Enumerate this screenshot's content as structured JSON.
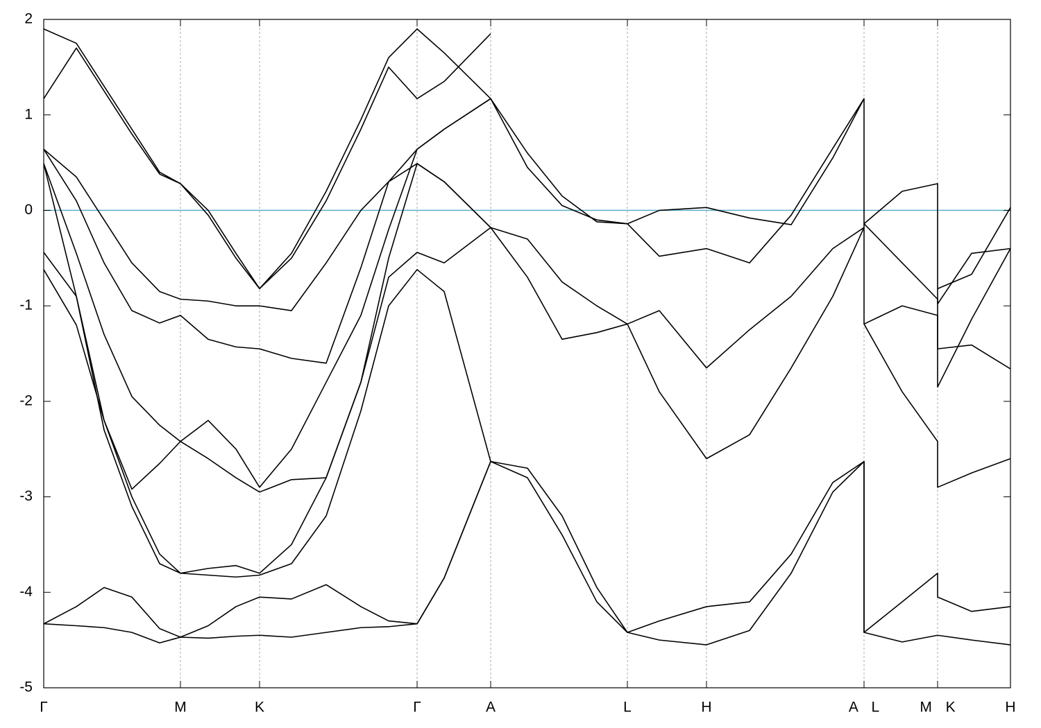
{
  "chart_data": {
    "type": "line",
    "x": [
      0,
      0.47,
      0.87,
      1.27,
      1.67,
      1.97,
      2.37,
      2.77,
      3.11,
      3.57,
      4.07,
      4.57,
      4.97,
      5.38,
      5.77,
      6.44,
      6.97,
      7.47,
      7.97,
      8.41,
      8.87,
      9.55,
      10.17,
      10.77,
      11.37,
      11.82,
      11.82,
      12.37,
      12.88,
      12.88,
      13.37,
      13.93
    ],
    "series": [
      {
        "color": "#000000",
        "values": [
          -4.33,
          -4.35,
          -4.37,
          -4.42,
          -4.53,
          -4.47,
          -4.48,
          -4.46,
          -4.45,
          -4.47,
          -4.42,
          -4.37,
          -4.36,
          -4.33,
          -3.85,
          -2.63,
          -2.8,
          -3.4,
          -4.1,
          -4.42,
          -4.5,
          -4.55,
          -4.4,
          -3.8,
          -2.95,
          -2.63,
          -4.42,
          -4.52,
          -4.45,
          -4.45,
          -4.5,
          -4.55
        ]
      },
      {
        "color": "#000000",
        "values": [
          -4.33,
          -4.15,
          -3.95,
          -4.05,
          -4.38,
          -4.47,
          -4.35,
          -4.15,
          -4.05,
          -4.07,
          -3.92,
          -4.15,
          -4.3,
          -4.33,
          -3.85,
          -2.63,
          -2.7,
          -3.2,
          -3.95,
          -4.42,
          -4.3,
          -4.15,
          -4.1,
          -3.6,
          -2.85,
          -2.63,
          -4.42,
          -4.1,
          -3.8,
          -4.05,
          -4.2,
          -4.15
        ]
      },
      {
        "color": "#000000",
        "values": [
          -0.62,
          -1.2,
          -2.2,
          -3.0,
          -3.6,
          -3.8,
          -3.82,
          -3.84,
          -3.82,
          -3.7,
          -3.2,
          -2.1,
          -1.0,
          -0.62,
          -0.85,
          -2.63,
          null,
          null,
          null,
          null,
          null,
          null,
          null,
          null,
          null,
          null,
          -1.19,
          -1.9,
          -2.42,
          -2.9,
          -2.75,
          -2.6
        ]
      },
      {
        "color": "#000000",
        "values": [
          -0.44,
          -0.9,
          -2.3,
          -3.1,
          -3.7,
          -3.8,
          -3.75,
          -3.72,
          -3.8,
          -3.5,
          -2.8,
          -1.8,
          -0.7,
          -0.44,
          -0.55,
          -0.18,
          -0.3,
          -0.75,
          -1.0,
          -1.19,
          -1.05,
          -1.65,
          -1.25,
          -0.9,
          -0.4,
          -0.18,
          -1.19,
          -1.0,
          -1.1,
          -1.85,
          -1.14,
          -0.4
        ]
      },
      {
        "color": "#000000",
        "values": [
          0.49,
          -0.45,
          -1.3,
          -1.95,
          -2.25,
          -2.42,
          -2.6,
          -2.8,
          -2.95,
          -2.82,
          -2.8,
          -1.8,
          -0.5,
          0.49,
          0.3,
          -0.18,
          -0.7,
          -1.35,
          -1.28,
          -1.19,
          -1.9,
          -2.6,
          -2.35,
          -1.65,
          -0.9,
          -0.18,
          -0.14,
          -0.55,
          -0.93,
          -1.45,
          -1.41,
          -1.66
        ]
      },
      {
        "color": "#000000",
        "values": [
          0.49,
          -0.9,
          -2.2,
          -2.92,
          -2.65,
          -2.42,
          -2.2,
          -2.5,
          -2.9,
          -2.5,
          -1.8,
          -1.1,
          -0.2,
          0.64,
          0.85,
          1.17,
          0.45,
          0.05,
          -0.1,
          -0.14,
          -0.48,
          -0.4,
          -0.55,
          -0.05,
          0.65,
          1.17,
          -0.14,
          0.2,
          0.28,
          -0.98,
          -0.45,
          -0.4
        ]
      },
      {
        "color": "#000000",
        "values": [
          0.64,
          0.1,
          -0.55,
          -1.05,
          -1.18,
          -1.1,
          -1.35,
          -1.43,
          -1.45,
          -1.55,
          -1.6,
          -0.6,
          0.3,
          0.64,
          0.85,
          1.17,
          0.6,
          0.15,
          -0.12,
          -0.14,
          0.0,
          0.03,
          -0.08,
          -0.15,
          0.55,
          1.17,
          null,
          null,
          null,
          -0.82,
          -0.67,
          0.03
        ]
      },
      {
        "color": "#000000",
        "values": [
          0.64,
          0.35,
          -0.1,
          -0.55,
          -0.85,
          -0.93,
          -0.95,
          -1.0,
          -1.0,
          -1.05,
          -0.55,
          0.0,
          0.3,
          0.49,
          0.3,
          -0.18,
          null,
          null,
          null,
          null,
          null,
          null,
          null,
          null,
          null,
          null,
          null,
          null,
          null,
          null,
          null,
          null
        ]
      },
      {
        "color": "#000000",
        "values": [
          1.17,
          1.7,
          1.25,
          0.8,
          0.38,
          0.28,
          0.0,
          -0.45,
          -0.82,
          -0.5,
          0.1,
          0.85,
          1.5,
          1.17,
          1.35,
          1.85,
          null,
          null,
          null,
          null,
          null,
          null,
          null,
          null,
          null,
          null,
          null,
          null,
          null,
          null,
          null,
          null
        ]
      },
      {
        "color": "#000000",
        "values": [
          1.9,
          1.75,
          1.3,
          0.85,
          0.4,
          0.28,
          -0.05,
          -0.5,
          -0.82,
          -0.45,
          0.2,
          0.95,
          1.6,
          1.9,
          1.65,
          1.17,
          null,
          null,
          null,
          null,
          null,
          null,
          null,
          null,
          null,
          null,
          null,
          null,
          null,
          null,
          null,
          null
        ]
      }
    ],
    "xlim": [
      0,
      13.93
    ],
    "ylim": [
      -5,
      2
    ],
    "xticks": [
      {
        "value": 0,
        "label": "Γ"
      },
      {
        "value": 1.97,
        "label": "M"
      },
      {
        "value": 3.11,
        "label": "K"
      },
      {
        "value": 5.38,
        "label": "Γ"
      },
      {
        "value": 6.44,
        "label": "A"
      },
      {
        "value": 8.41,
        "label": "L"
      },
      {
        "value": 9.55,
        "label": "H"
      },
      {
        "value": 11.82,
        "label": "A L"
      },
      {
        "value": 12.88,
        "label": "M K"
      },
      {
        "value": 13.93,
        "label": "H"
      }
    ],
    "yticks": [
      -5,
      -4,
      -3,
      -2,
      -1,
      0,
      1,
      2
    ],
    "xgrid": true,
    "fermi_level": 0,
    "fermi_color": "#5ab0c8"
  }
}
